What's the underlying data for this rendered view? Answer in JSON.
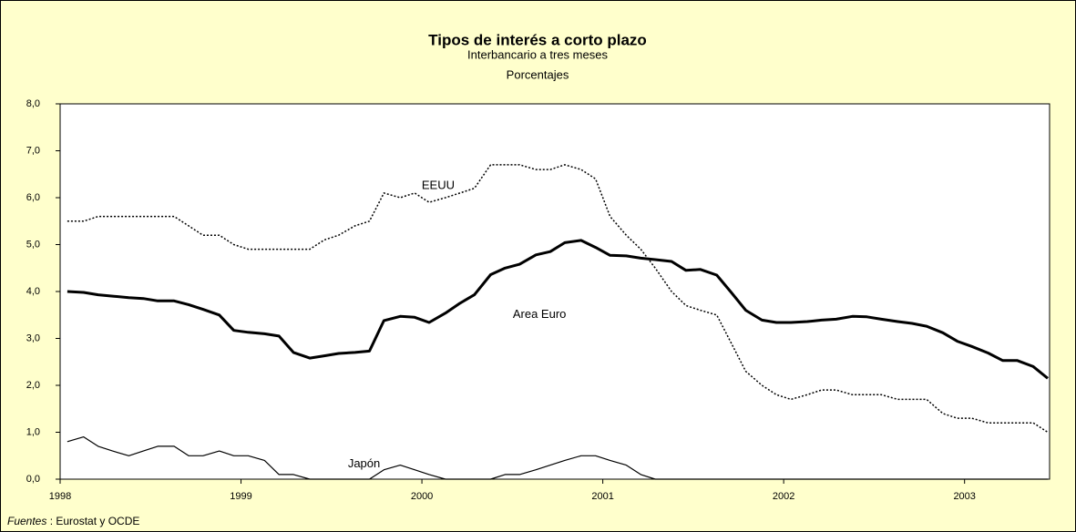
{
  "chart_data": {
    "type": "line",
    "title": "Tipos de interés a corto plazo",
    "subtitle": "Interbancario a tres meses",
    "unit_label": "Porcentajes",
    "source": {
      "label": "Fuentes",
      "text": " : Eurostat y OCDE"
    },
    "x": [
      1998.04,
      1998.13,
      1998.21,
      1998.29,
      1998.38,
      1998.46,
      1998.54,
      1998.63,
      1998.71,
      1998.79,
      1998.88,
      1998.96,
      1999.04,
      1999.13,
      1999.21,
      1999.29,
      1999.38,
      1999.46,
      1999.54,
      1999.63,
      1999.71,
      1999.79,
      1999.88,
      1999.96,
      2000.04,
      2000.13,
      2000.21,
      2000.29,
      2000.38,
      2000.46,
      2000.54,
      2000.63,
      2000.71,
      2000.79,
      2000.88,
      2000.96,
      2001.04,
      2001.13,
      2001.21,
      2001.29,
      2001.38,
      2001.46,
      2001.54,
      2001.63,
      2001.71,
      2001.79,
      2001.88,
      2001.96,
      2002.04,
      2002.13,
      2002.21,
      2002.29,
      2002.38,
      2002.46,
      2002.54,
      2002.63,
      2002.71,
      2002.79,
      2002.88,
      2002.96,
      2003.04,
      2003.13,
      2003.21,
      2003.29,
      2003.38,
      2003.46
    ],
    "series": [
      {
        "name": "EEUU",
        "color": "#000000",
        "style": "dotted",
        "width": 1.5,
        "values": [
          5.5,
          5.5,
          5.6,
          5.6,
          5.6,
          5.6,
          5.6,
          5.6,
          5.4,
          5.2,
          5.2,
          5.0,
          4.9,
          4.9,
          4.9,
          4.9,
          4.9,
          5.1,
          5.2,
          5.4,
          5.5,
          6.1,
          6.0,
          6.1,
          5.9,
          6.0,
          6.1,
          6.2,
          6.7,
          6.7,
          6.7,
          6.6,
          6.6,
          6.7,
          6.6,
          6.4,
          5.6,
          5.2,
          4.9,
          4.5,
          4.0,
          3.7,
          3.6,
          3.5,
          2.9,
          2.3,
          2.0,
          1.8,
          1.7,
          1.8,
          1.9,
          1.9,
          1.8,
          1.8,
          1.8,
          1.7,
          1.7,
          1.7,
          1.4,
          1.3,
          1.3,
          1.2,
          1.2,
          1.2,
          1.2,
          1.0
        ]
      },
      {
        "name": "Area Euro",
        "color": "#000000",
        "style": "solid",
        "width": 3,
        "values": [
          4.0,
          3.98,
          3.93,
          3.9,
          3.87,
          3.85,
          3.8,
          3.8,
          3.72,
          3.62,
          3.5,
          3.17,
          3.13,
          3.1,
          3.05,
          2.7,
          2.58,
          2.63,
          2.68,
          2.7,
          2.73,
          3.38,
          3.47,
          3.45,
          3.34,
          3.54,
          3.75,
          3.93,
          4.36,
          4.5,
          4.58,
          4.78,
          4.85,
          5.04,
          5.09,
          4.94,
          4.77,
          4.76,
          4.71,
          4.68,
          4.64,
          4.45,
          4.47,
          4.35,
          3.98,
          3.6,
          3.39,
          3.34,
          3.34,
          3.36,
          3.39,
          3.41,
          3.47,
          3.46,
          3.41,
          3.36,
          3.32,
          3.26,
          3.12,
          2.94,
          2.83,
          2.69,
          2.53,
          2.53,
          2.4,
          2.15
        ]
      },
      {
        "name": "Japón",
        "color": "#000000",
        "style": "solid",
        "width": 1.2,
        "values": [
          0.8,
          0.9,
          0.7,
          0.6,
          0.5,
          0.6,
          0.7,
          0.7,
          0.5,
          0.5,
          0.6,
          0.5,
          0.5,
          0.4,
          0.1,
          0.1,
          0,
          0,
          0,
          0,
          0,
          0.2,
          0.3,
          0.2,
          0.1,
          0,
          0,
          0,
          0,
          0.1,
          0.1,
          0.2,
          0.3,
          0.4,
          0.5,
          0.5,
          0.4,
          0.3,
          0.1,
          0,
          0,
          0,
          0,
          0,
          0,
          0,
          0,
          0,
          0,
          0,
          0,
          0,
          0,
          0,
          0,
          0,
          0,
          0,
          0,
          0,
          0,
          0,
          0,
          0,
          0,
          0
        ]
      }
    ],
    "annotations": [
      {
        "text": "EEUU",
        "x": 2000.09,
        "y": 6.25
      },
      {
        "text": "Area Euro",
        "x": 2000.65,
        "y": 3.5
      },
      {
        "text": "Japón",
        "x": 1999.68,
        "y": 0.32
      }
    ],
    "xlim": [
      1998,
      2003.47
    ],
    "xticks": [
      1998,
      1999,
      2000,
      2001,
      2002,
      2003
    ],
    "ylim": [
      0,
      8
    ],
    "yticks": [
      {
        "value": 0,
        "label": "0,0"
      },
      {
        "value": 1,
        "label": "1,0"
      },
      {
        "value": 2,
        "label": "2,0"
      },
      {
        "value": 3,
        "label": "3,0"
      },
      {
        "value": 4,
        "label": "4,0"
      },
      {
        "value": 5,
        "label": "5,0"
      },
      {
        "value": 6,
        "label": "6,0"
      },
      {
        "value": 7,
        "label": "7,0"
      },
      {
        "value": 8,
        "label": "8,0"
      }
    ],
    "grid": false
  }
}
